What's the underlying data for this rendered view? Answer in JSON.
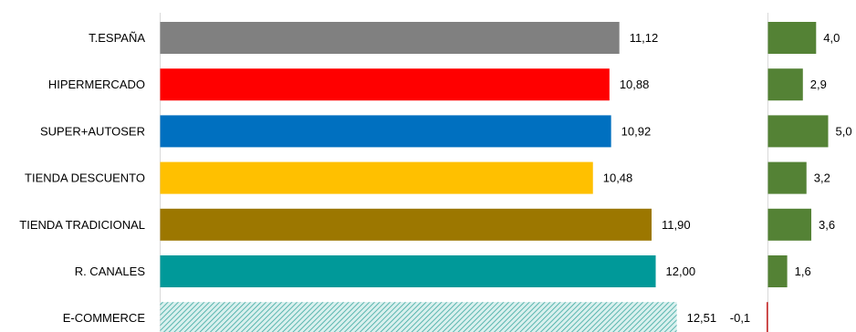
{
  "chart_data": [
    {
      "type": "bar",
      "orientation": "horizontal",
      "categories": [
        "T.ESPAÑA",
        "HIPERMERCADO",
        "SUPER+AUTOSER",
        "TIENDA DESCUENTO",
        "TIENDA TRADICIONAL",
        "R. CANALES",
        "E-COMMERCE"
      ],
      "values": [
        11.12,
        10.88,
        10.92,
        10.48,
        11.9,
        12.0,
        12.51
      ],
      "value_labels": [
        "11,12",
        "10,88",
        "10,92",
        "10,48",
        "11,90",
        "12,00",
        "12,51"
      ],
      "colors": [
        "#808080",
        "#ff0000",
        "#0070c0",
        "#ffc000",
        "#9c7700",
        "#009999",
        "#d9f0ee"
      ],
      "patterned_categories": [
        "E-COMMERCE"
      ],
      "pattern_color": "#3ca8a0",
      "xlim": [
        0,
        15.9
      ],
      "grid": false,
      "title": "",
      "xlabel": "",
      "ylabel": ""
    },
    {
      "type": "bar",
      "orientation": "horizontal",
      "categories": [
        "T.ESPAÑA",
        "HIPERMERCADO",
        "SUPER+AUTOSER",
        "TIENDA DESCUENTO",
        "TIENDA TRADICIONAL",
        "R. CANALES",
        "E-COMMERCE"
      ],
      "values": [
        4.0,
        2.9,
        5.0,
        3.2,
        3.6,
        1.6,
        -0.1
      ],
      "value_labels": [
        "4,0",
        "2,9",
        "5,0",
        "3,2",
        "3,6",
        "1,6",
        "-0,1"
      ],
      "positive_color": "#548235",
      "negative_color": "#c00000",
      "xlim": [
        -0.5,
        5.0
      ],
      "grid": false,
      "title": "",
      "xlabel": "",
      "ylabel": ""
    }
  ]
}
